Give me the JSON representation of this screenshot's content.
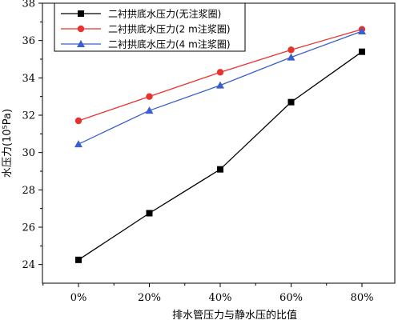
{
  "chart_data": {
    "type": "line",
    "title": "",
    "xlabel": "排水管压力与静水压的比值",
    "ylabel": "水压力(10⁵Pa)",
    "categories": [
      "0%",
      "20%",
      "40%",
      "60%",
      "80%"
    ],
    "yticks": [
      "24",
      "26",
      "28",
      "30",
      "32",
      "34",
      "36",
      "38"
    ],
    "ylim": [
      23,
      38
    ],
    "grid": false,
    "legend_position": "top-left",
    "series": [
      {
        "name": "二衬拱底水压力(无注浆圈)",
        "values": [
          24.25,
          26.75,
          29.1,
          32.7,
          35.4
        ],
        "color": "#000000",
        "marker": "square"
      },
      {
        "name": "二衬拱底水压力(2 m注浆圈)",
        "values": [
          31.7,
          33.0,
          34.3,
          35.5,
          36.6
        ],
        "color": "#e8322e",
        "marker": "circle"
      },
      {
        "name": "二衬拱底水压力(4 m注浆圈)",
        "values": [
          30.45,
          32.25,
          33.6,
          35.1,
          36.5
        ],
        "color": "#3a5fcd",
        "marker": "triangle"
      }
    ]
  }
}
